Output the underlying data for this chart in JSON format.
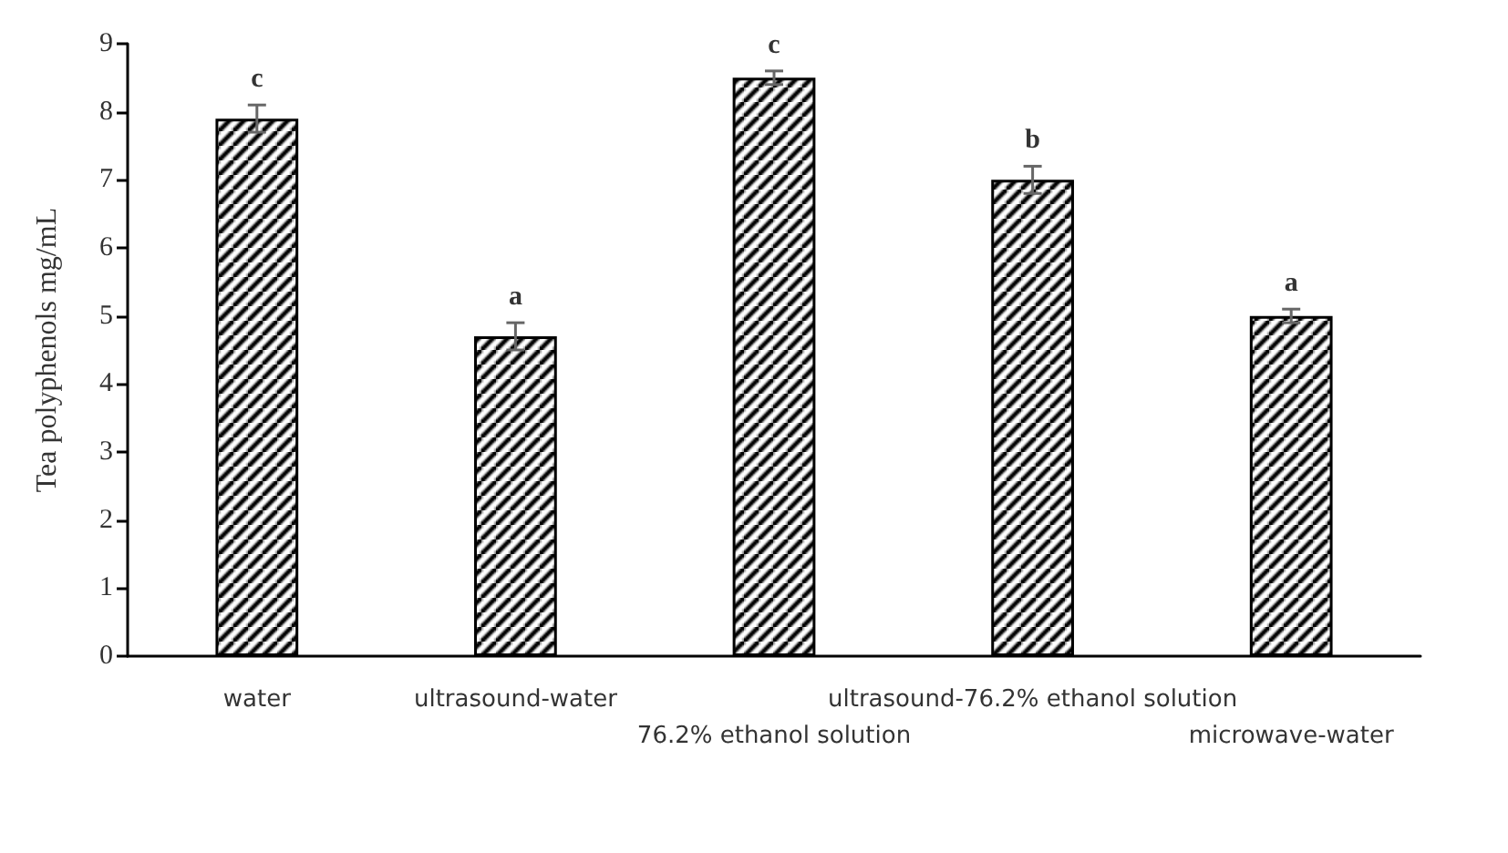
{
  "chart_data": {
    "type": "bar",
    "ylabel": "Tea polyphenols mg/mL",
    "categories": [
      "water",
      "ultrasound-water",
      "76.2% ethanol solution",
      "ultrasound-76.2% ethanol solution",
      "microwave-water"
    ],
    "values": [
      7.9,
      4.7,
      8.5,
      7.0,
      5.0
    ],
    "errors": [
      0.2,
      0.2,
      0.1,
      0.2,
      0.1
    ],
    "color": "#000000",
    "ylim": [
      0,
      9
    ],
    "yticks": [
      0,
      1,
      2,
      3,
      4,
      5,
      6,
      7,
      8,
      9
    ],
    "grid": false,
    "annotations": [
      "c",
      "a",
      "c",
      "b",
      "a"
    ]
  }
}
